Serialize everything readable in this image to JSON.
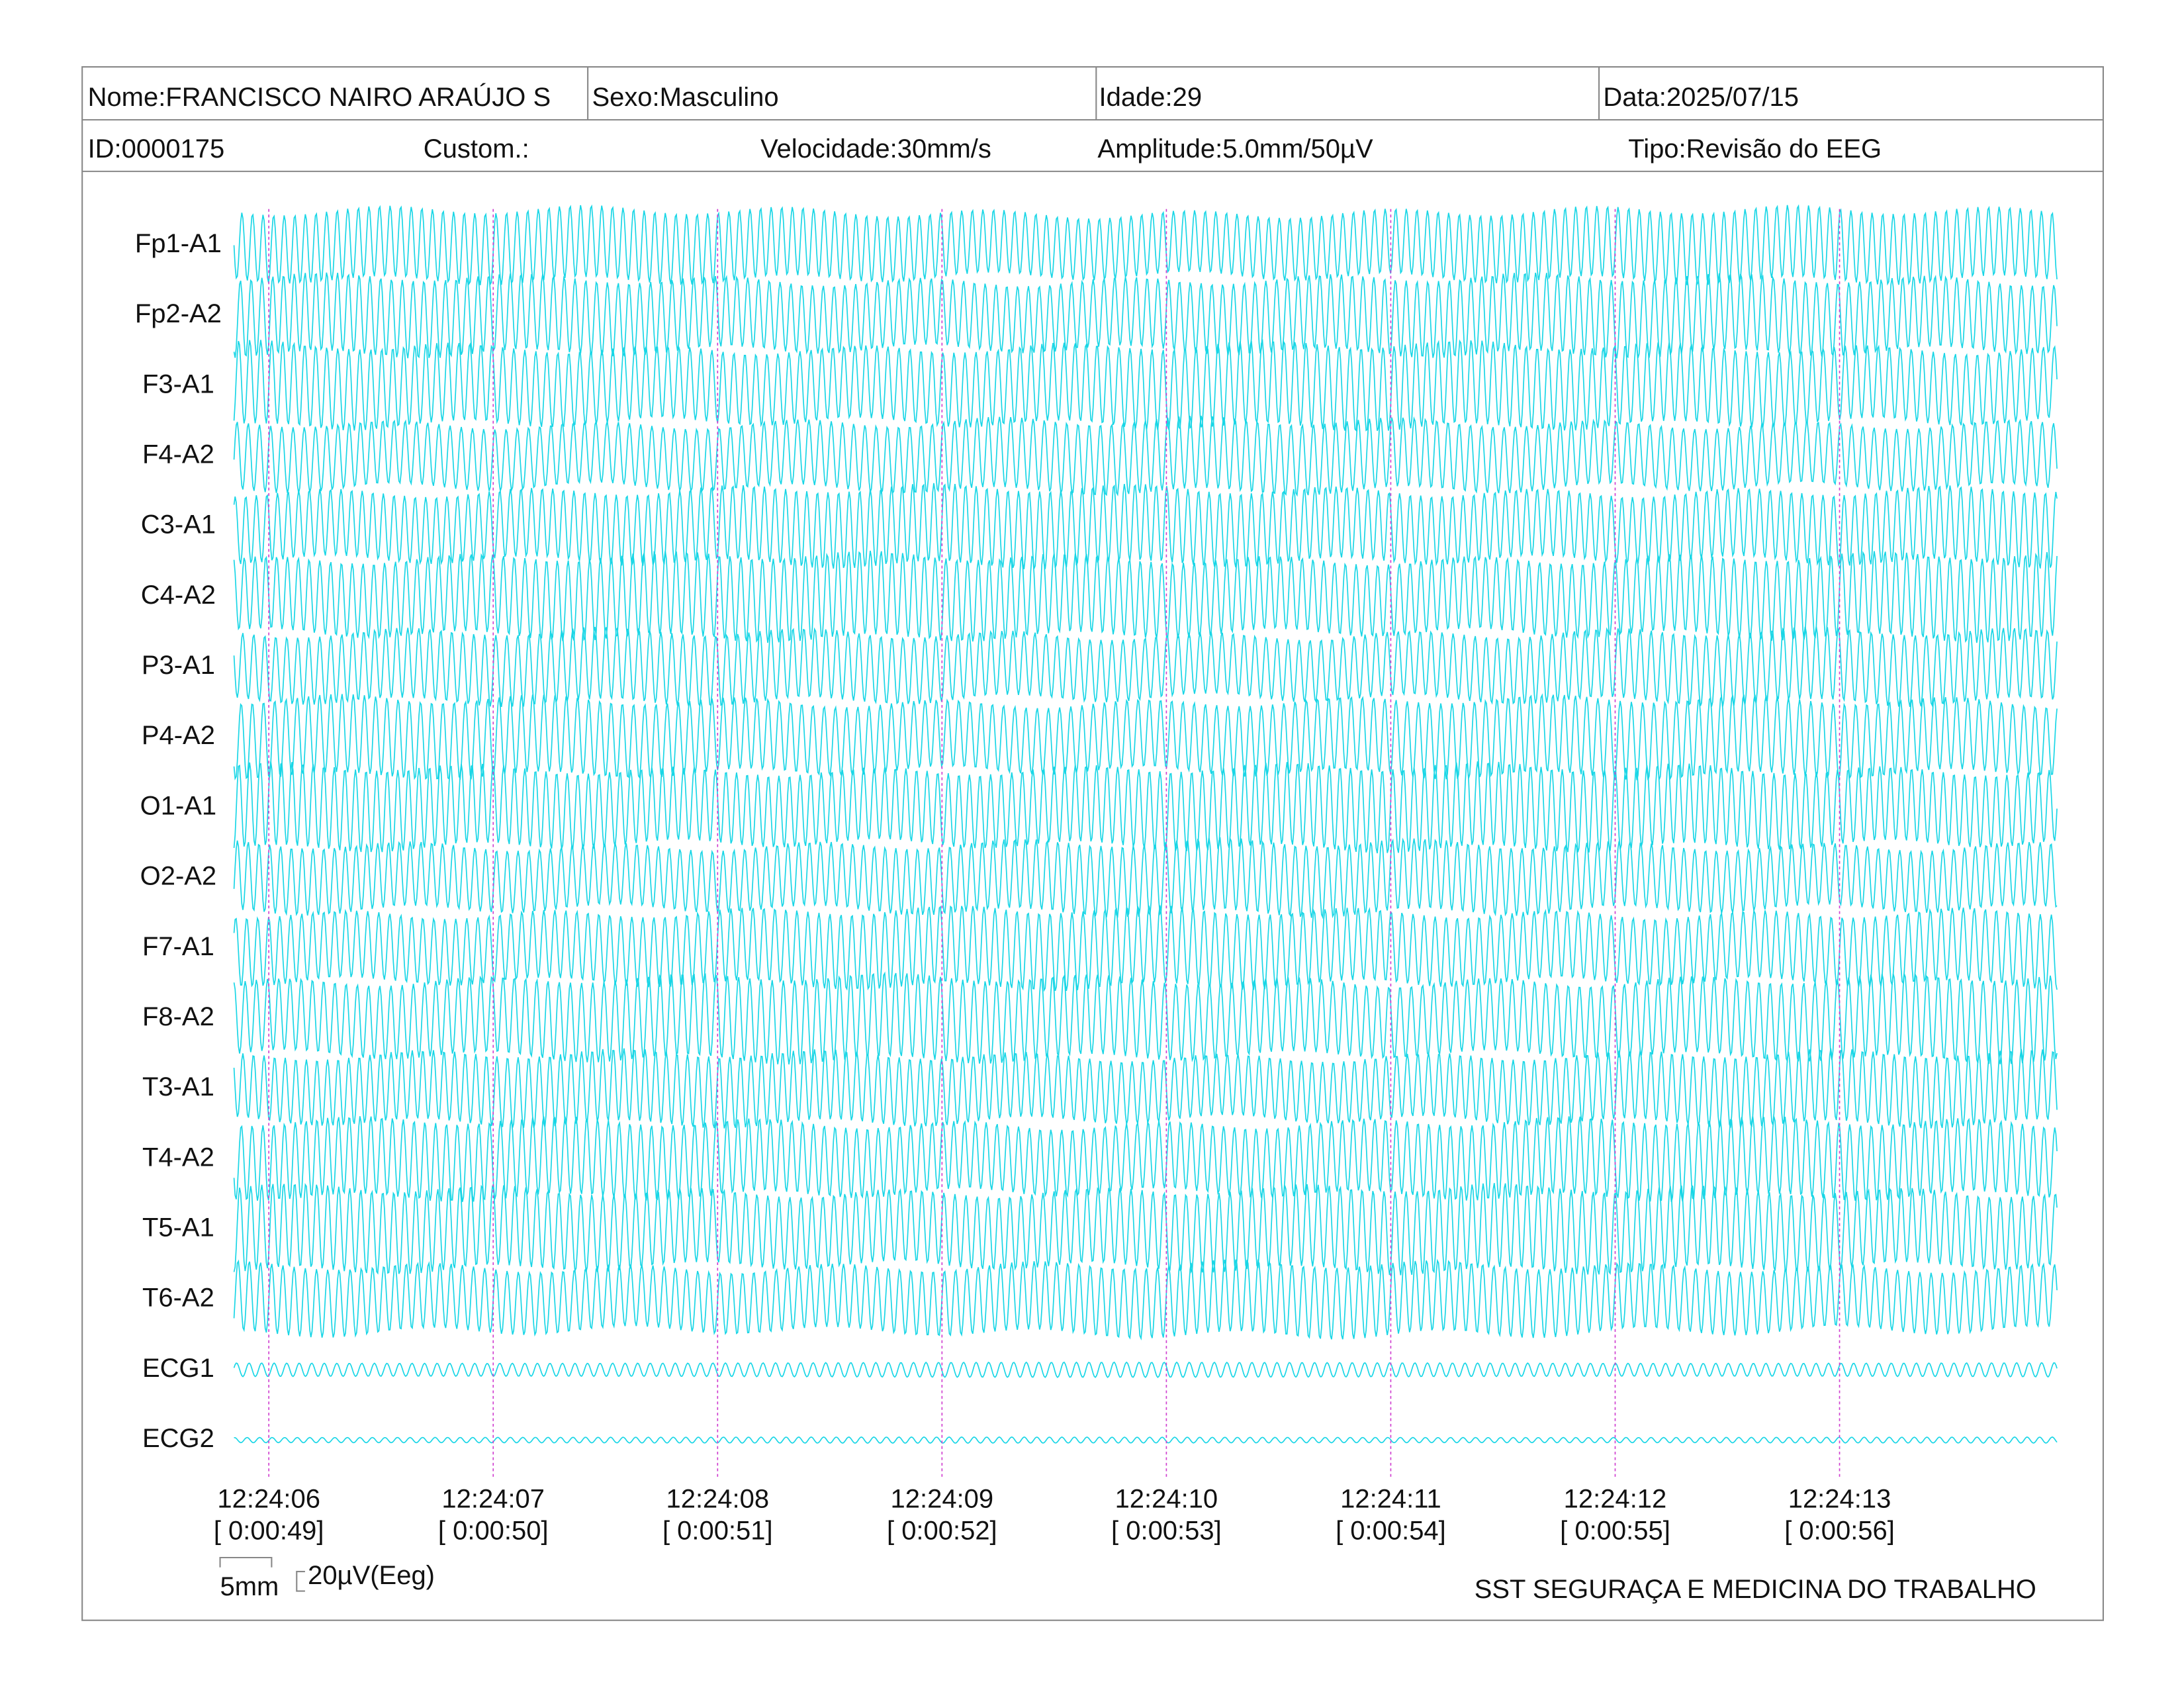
{
  "header": {
    "row1": [
      "Nome:FRANCISCO NAIRO ARAÚJO S",
      "Sexo:Masculino",
      "Idade:29",
      "Data:2025/07/15"
    ],
    "row2": [
      "ID:0000175",
      "Custom.:",
      "Velocidade:30mm/s",
      "Amplitude:5.0mm/50µV",
      "Tipo:Revisão do EEG"
    ]
  },
  "channels": [
    "Fp1-A1",
    "Fp2-A2",
    "F3-A1",
    "F4-A2",
    "C3-A1",
    "C4-A2",
    "P3-A1",
    "P4-A2",
    "O1-A1",
    "O2-A2",
    "F7-A1",
    "F8-A2",
    "T3-A1",
    "T4-A2",
    "T5-A1",
    "T6-A2",
    "ECG1",
    "ECG2"
  ],
  "times": [
    "12:24:06",
    "12:24:07",
    "12:24:08",
    "12:24:09",
    "12:24:10",
    "12:24:11",
    "12:24:12",
    "12:24:13"
  ],
  "elapsed": [
    "[ 0:00:49]",
    "[ 0:00:50]",
    "[ 0:00:51]",
    "[ 0:00:52]",
    "[ 0:00:53]",
    "[ 0:00:54]",
    "[ 0:00:55]",
    "[ 0:00:56]"
  ],
  "scale": {
    "time": "5mm",
    "amplitude": "20µV(Eeg)"
  },
  "footer": "SST SEGURAÇA E MEDICINA DO TRABALHO"
}
